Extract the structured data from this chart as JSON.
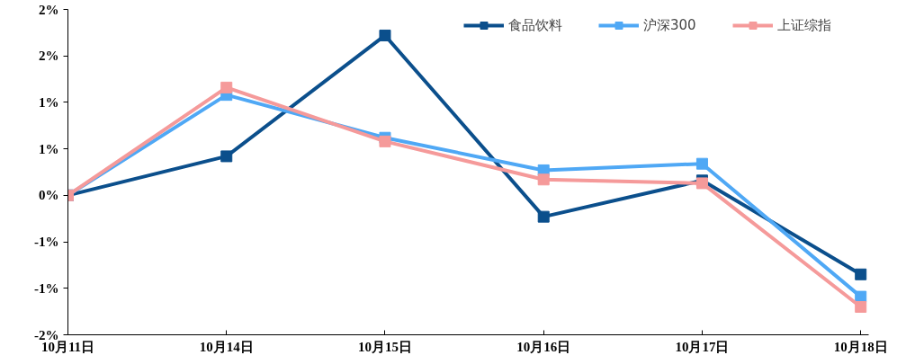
{
  "chart_data": {
    "type": "line",
    "categories": [
      "10月11日",
      "10月14日",
      "10月15日",
      "10月16日",
      "10月17日",
      "10月18日"
    ],
    "series": [
      {
        "name": "食品饮料",
        "color": "#0b4f8c",
        "values": [
          0,
          0.42,
          1.72,
          -0.23,
          0.16,
          -0.85
        ]
      },
      {
        "name": "沪深300",
        "color": "#4fa8f5",
        "values": [
          0,
          1.08,
          0.62,
          0.27,
          0.34,
          -1.09
        ]
      },
      {
        "name": "上证综指",
        "color": "#f59a9a",
        "values": [
          0,
          1.16,
          0.58,
          0.17,
          0.13,
          -1.2
        ]
      }
    ],
    "ylim": [
      -1.5,
      2.0
    ],
    "yticks": [
      {
        "value": -1.5,
        "label": "-2%"
      },
      {
        "value": -1.0,
        "label": "-1%"
      },
      {
        "value": -0.5,
        "label": "-1%"
      },
      {
        "value": 0,
        "label": "0%"
      },
      {
        "value": 0.5,
        "label": "1%"
      },
      {
        "value": 1.0,
        "label": "1%"
      },
      {
        "value": 1.5,
        "label": "2%"
      },
      {
        "value": 2.0,
        "label": "2%"
      }
    ],
    "grid": false,
    "legend": "top",
    "marker": "square",
    "line_style": "solid"
  }
}
